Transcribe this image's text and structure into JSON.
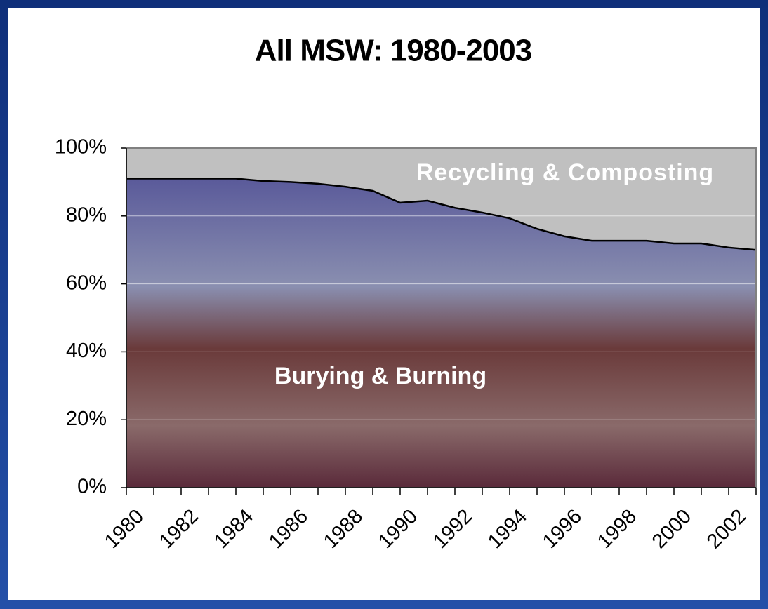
{
  "chart_data": {
    "type": "stacked-area",
    "title": "All MSW:  1980-2003",
    "x": [
      1980,
      1981,
      1982,
      1983,
      1984,
      1985,
      1986,
      1987,
      1988,
      1989,
      1990,
      1991,
      1992,
      1993,
      1994,
      1995,
      1996,
      1997,
      1998,
      1999,
      2000,
      2001,
      2002,
      2003
    ],
    "xlim": [
      1980,
      2003
    ],
    "xticks": [
      1980,
      1982,
      1984,
      1986,
      1988,
      1990,
      1992,
      1994,
      1996,
      1998,
      2000,
      2002
    ],
    "ylim": [
      0,
      100
    ],
    "yticks": [
      {
        "value": 0,
        "label": "0%"
      },
      {
        "value": 20,
        "label": "20%"
      },
      {
        "value": 40,
        "label": "40%"
      },
      {
        "value": 60,
        "label": "60%"
      },
      {
        "value": 80,
        "label": "80%"
      },
      {
        "value": 100,
        "label": "100%"
      }
    ],
    "grid": true,
    "series": [
      {
        "name": "Burying & Burning",
        "color": "#6b4a6a",
        "values": [
          91,
          91,
          91,
          91,
          91,
          90.3,
          90,
          89.5,
          88.6,
          87.4,
          83.9,
          84.5,
          82.4,
          81,
          79.3,
          76.2,
          74,
          72.7,
          72.7,
          72.7,
          71.9,
          71.9,
          70.7,
          70
        ]
      },
      {
        "name": "Recycling & Composting",
        "color": "#c0c0c0",
        "values": [
          9,
          9,
          9,
          9,
          9,
          9.7,
          10,
          10.5,
          11.4,
          12.6,
          16.1,
          15.5,
          17.6,
          19,
          20.7,
          23.8,
          26,
          27.3,
          27.3,
          27.3,
          28.1,
          28.1,
          29.3,
          30
        ]
      }
    ]
  }
}
